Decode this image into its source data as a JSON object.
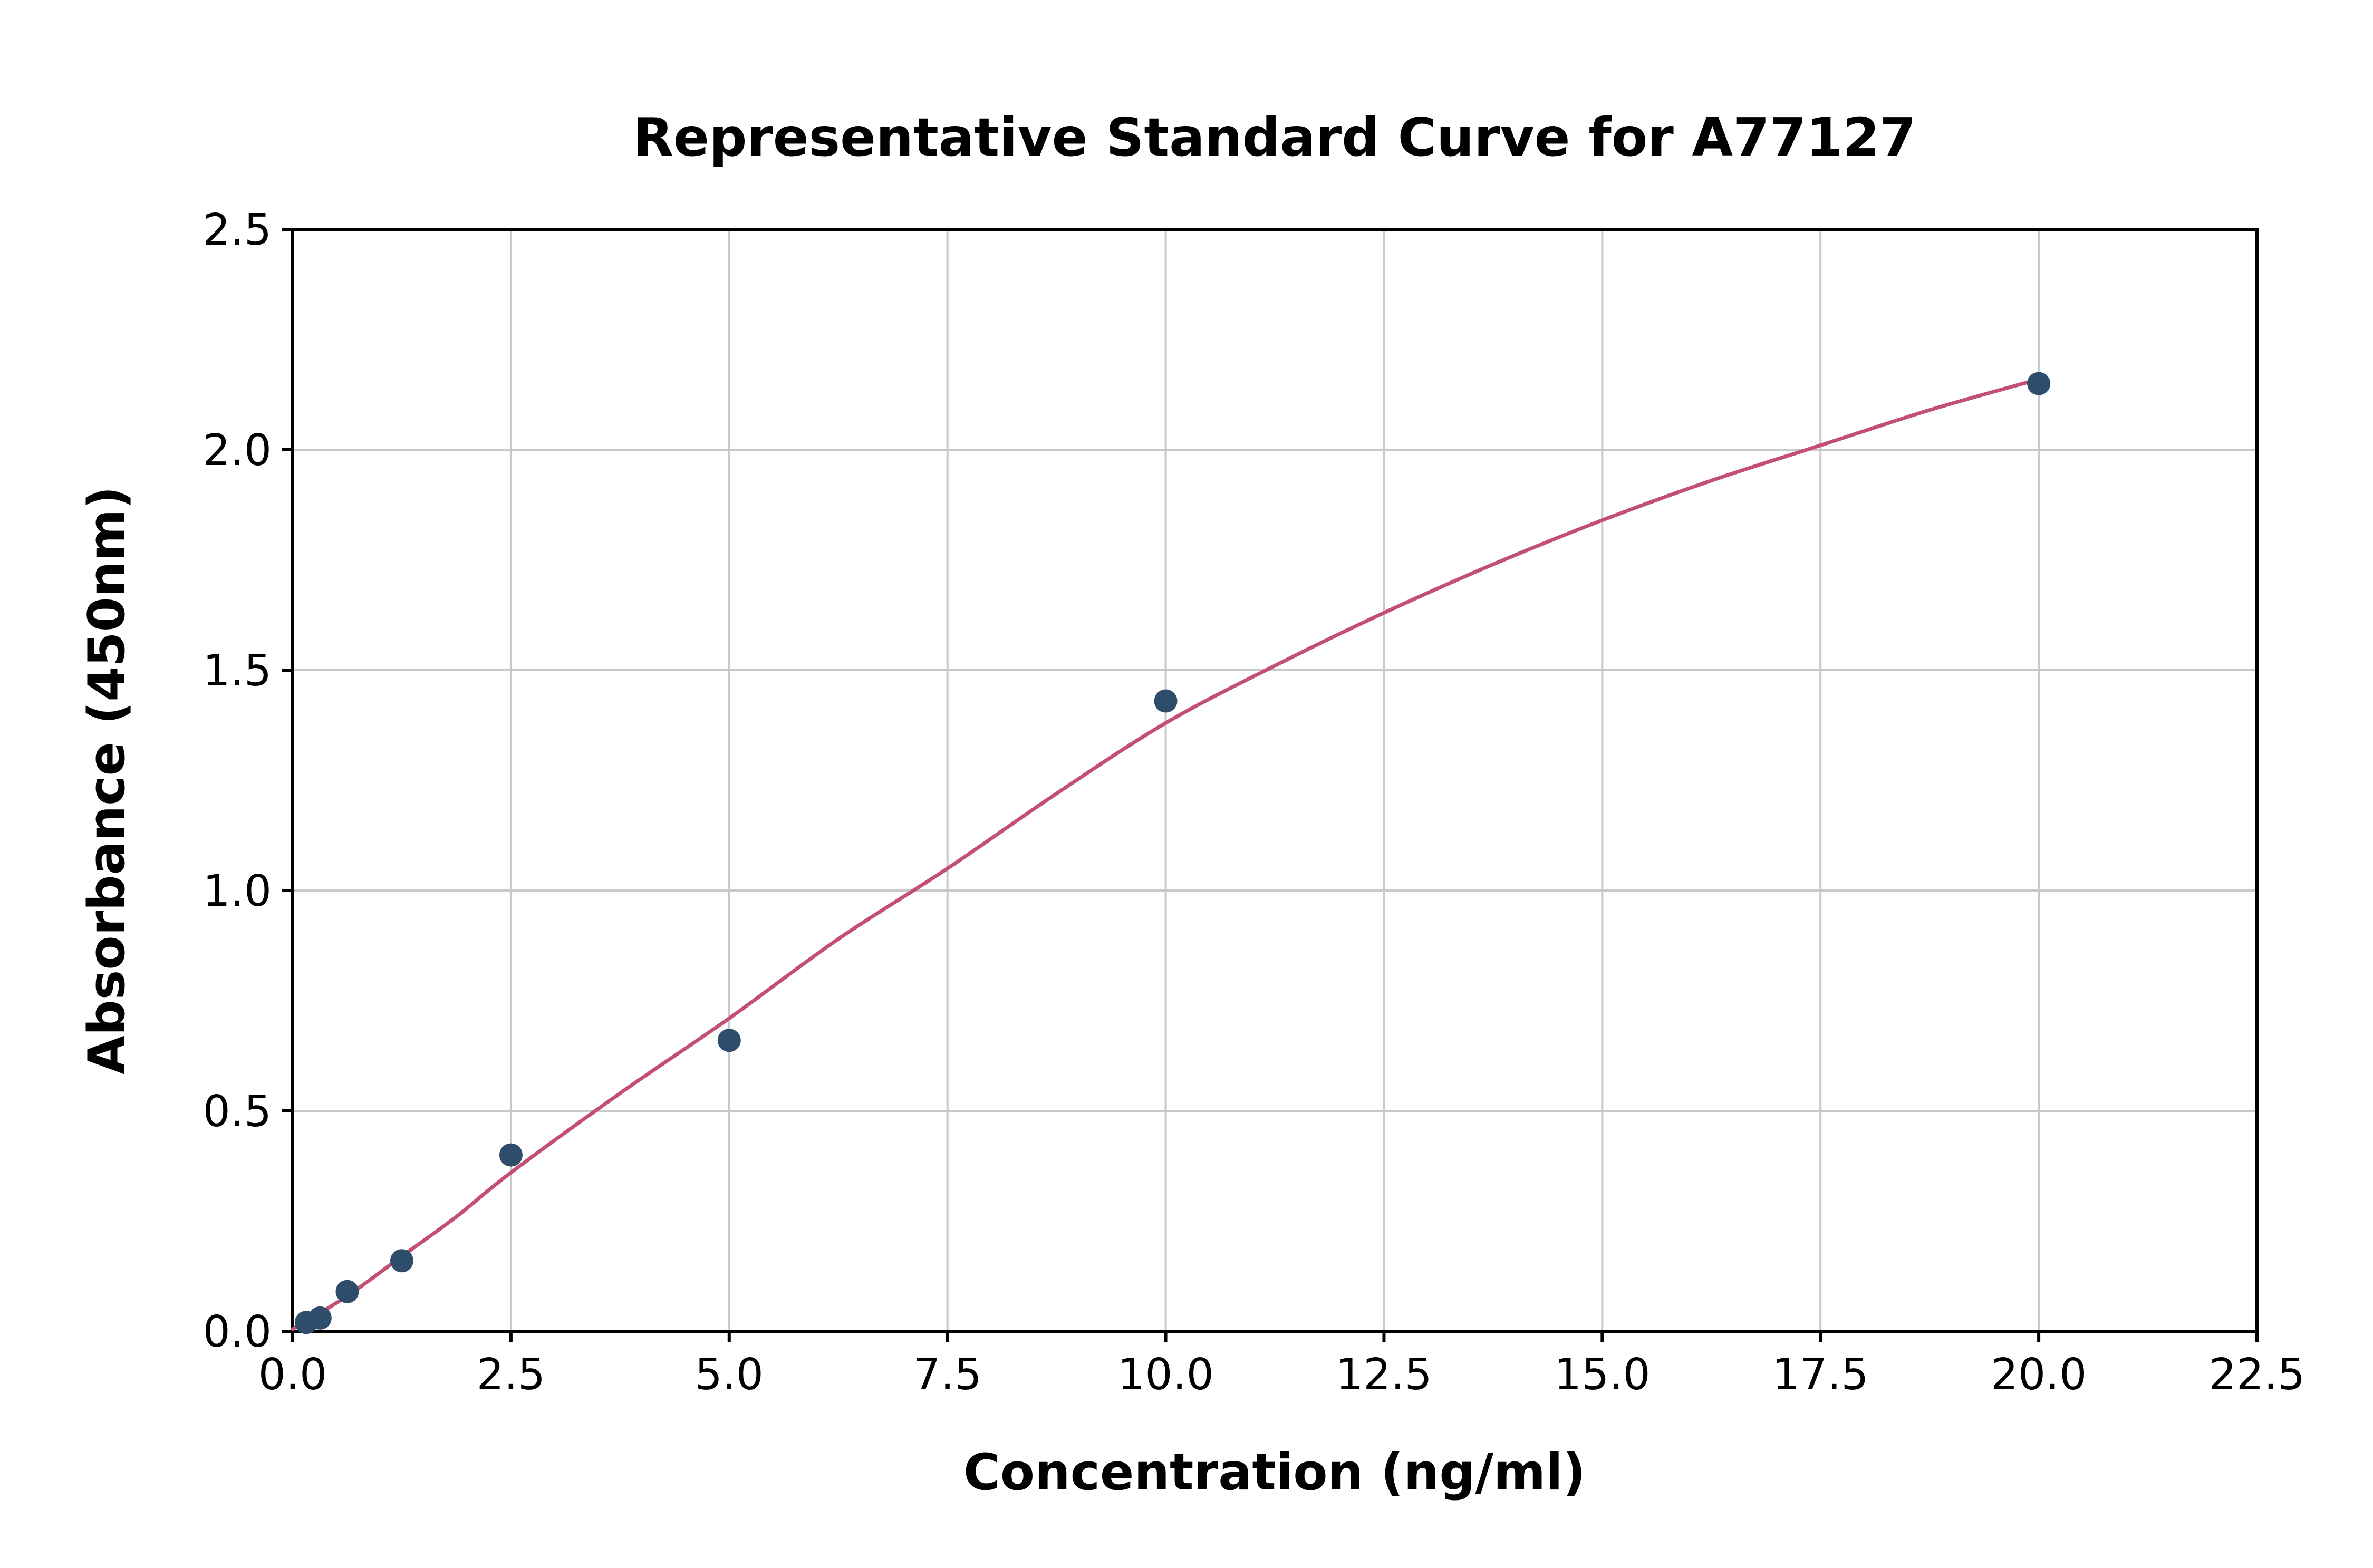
{
  "chart_data": {
    "type": "scatter",
    "title": "Representative Standard Curve for A77127",
    "xlabel": "Concentration (ng/ml)",
    "ylabel": "Absorbance (450nm)",
    "xlim": [
      0,
      22.5
    ],
    "ylim": [
      0,
      2.5
    ],
    "xticks": [
      0.0,
      2.5,
      5.0,
      7.5,
      10.0,
      12.5,
      15.0,
      17.5,
      20.0,
      22.5
    ],
    "yticks": [
      0.0,
      0.5,
      1.0,
      1.5,
      2.0,
      2.5
    ],
    "grid": true,
    "legend": "none",
    "points": {
      "x": [
        0.156,
        0.313,
        0.625,
        1.25,
        2.5,
        5.0,
        10.0,
        20.0
      ],
      "y": [
        0.02,
        0.03,
        0.09,
        0.16,
        0.4,
        0.66,
        1.43,
        2.15
      ]
    },
    "fit_curve": {
      "x": [
        0.0,
        0.625,
        1.25,
        1.875,
        2.5,
        3.75,
        5.0,
        6.25,
        7.5,
        8.75,
        10.0,
        11.25,
        12.5,
        13.75,
        15.0,
        16.25,
        17.5,
        18.75,
        20.0
      ],
      "y": [
        0.005,
        0.08,
        0.17,
        0.26,
        0.36,
        0.54,
        0.71,
        0.89,
        1.05,
        1.22,
        1.38,
        1.51,
        1.63,
        1.74,
        1.84,
        1.93,
        2.01,
        2.09,
        2.16
      ]
    },
    "colors": {
      "point": "#2e4d6b",
      "curve": "#c34f72",
      "grid": "#c9c9c9",
      "frame": "#000000"
    }
  }
}
